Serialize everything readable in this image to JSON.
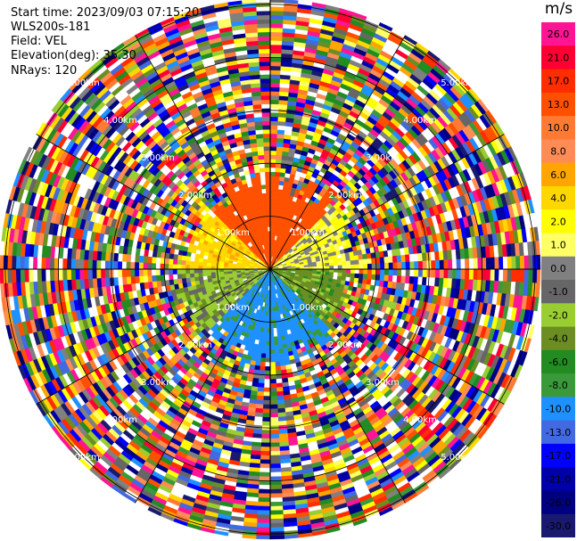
{
  "header": {
    "start_time": "Start time: 2023/09/03 07:15:20",
    "instrument": "WLS200s-181",
    "field": "Field: VEL",
    "elevation": "Elevation(deg): 35.30",
    "nrays": "NRays: 120"
  },
  "colorbar": {
    "unit": "m/s",
    "bins": [
      {
        "label": "26.0",
        "color": "#ff1493"
      },
      {
        "label": "21.0",
        "color": "#ff0033"
      },
      {
        "label": "17.0",
        "color": "#ff2d00"
      },
      {
        "label": "13.0",
        "color": "#ff5000"
      },
      {
        "label": "10.0",
        "color": "#ff7a33"
      },
      {
        "label": "8.0",
        "color": "#ff8c55"
      },
      {
        "label": "6.0",
        "color": "#ffa500"
      },
      {
        "label": "4.0",
        "color": "#ffd700"
      },
      {
        "label": "2.0",
        "color": "#ffff00"
      },
      {
        "label": "1.0",
        "color": "#ffff66"
      },
      {
        "label": "0.0",
        "color": "#808080"
      },
      {
        "label": "-1.0",
        "color": "#666666"
      },
      {
        "label": "-2.0",
        "color": "#9acd32"
      },
      {
        "label": "-4.0",
        "color": "#6b8e23"
      },
      {
        "label": "-6.0",
        "color": "#228b22"
      },
      {
        "label": "-8.0",
        "color": "#3a9a3a"
      },
      {
        "label": "-10.0",
        "color": "#1e90ff"
      },
      {
        "label": "-13.0",
        "color": "#4169e1"
      },
      {
        "label": "-17.0",
        "color": "#0000ff"
      },
      {
        "label": "-21.0",
        "color": "#0000aa"
      },
      {
        "label": "-26.0",
        "color": "#000080"
      },
      {
        "label": "-30.0",
        "color": "#191970"
      }
    ]
  },
  "chart_data": {
    "type": "heatmap",
    "subtype": "polar PPI scan",
    "field": "VEL",
    "units": "m/s",
    "n_rays": 120,
    "elevation_deg": 35.3,
    "range_rings_km": [
      1.0,
      2.0,
      3.0,
      4.0,
      5.0
    ],
    "range_ring_labels": [
      "1.00km",
      "2.00km",
      "3.00km",
      "4.00km",
      "5.00km"
    ],
    "max_range_km": 5.1,
    "azimuth_spokes_deg": [
      0,
      30,
      60,
      90,
      120,
      150,
      180,
      210,
      240,
      270,
      300,
      330
    ],
    "inner_valid_range_km": 1.7,
    "approx_sector_velocity_ms": [
      {
        "azimuth_range_deg": [
          315,
          45
        ],
        "velocity": 13.0
      },
      {
        "azimuth_range_deg": [
          45,
          90
        ],
        "velocity": 1.0
      },
      {
        "azimuth_range_deg": [
          90,
          135
        ],
        "velocity": -4.0
      },
      {
        "azimuth_range_deg": [
          135,
          225
        ],
        "velocity": -10.0
      },
      {
        "azimuth_range_deg": [
          225,
          270
        ],
        "velocity": -2.0
      },
      {
        "azimuth_range_deg": [
          270,
          315
        ],
        "velocity": 4.0
      }
    ],
    "outer_region": "noise (random colors across full scale)",
    "colorscale": [
      "26.0",
      "21.0",
      "17.0",
      "13.0",
      "10.0",
      "8.0",
      "6.0",
      "4.0",
      "2.0",
      "1.0",
      "0.0",
      "-1.0",
      "-2.0",
      "-4.0",
      "-6.0",
      "-8.0",
      "-10.0",
      "-13.0",
      "-17.0",
      "-21.0",
      "-26.0",
      "-30.0"
    ],
    "legend_position": "right"
  }
}
